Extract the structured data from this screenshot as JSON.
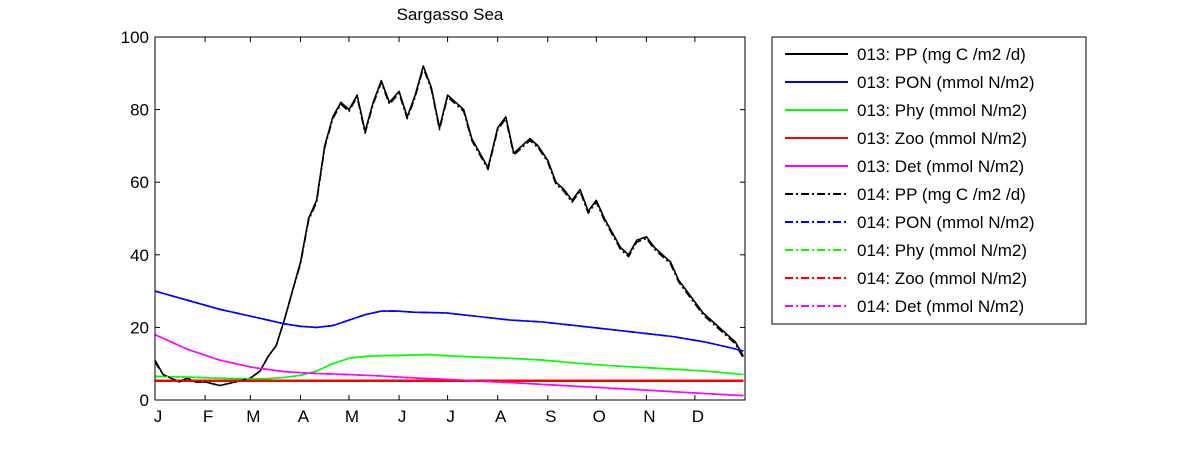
{
  "chart_data": {
    "type": "line",
    "title": "Sargasso Sea",
    "xlabel": "",
    "ylabel": "",
    "xlim": [
      0,
      365
    ],
    "ylim": [
      0,
      100
    ],
    "yticks": [
      0,
      20,
      40,
      60,
      80,
      100
    ],
    "xtick_labels": [
      "J",
      "F",
      "M",
      "A",
      "M",
      "J",
      "J",
      "A",
      "S",
      "O",
      "N",
      "D"
    ],
    "xtick_days": [
      0,
      31,
      59,
      90,
      120,
      151,
      181,
      212,
      243,
      273,
      304,
      334
    ],
    "grid": false,
    "legend_position": "outside-right",
    "series": [
      {
        "name": "013: PP (mg C /m2 /d)",
        "color": "#000000",
        "dash": "solid",
        "x": [
          0,
          5,
          10,
          15,
          20,
          25,
          31,
          40,
          50,
          59,
          65,
          70,
          75,
          80,
          85,
          90,
          95,
          100,
          105,
          110,
          115,
          120,
          125,
          130,
          135,
          140,
          145,
          151,
          156,
          161,
          166,
          171,
          176,
          181,
          186,
          191,
          196,
          201,
          206,
          212,
          217,
          222,
          227,
          232,
          237,
          243,
          248,
          253,
          258,
          263,
          268,
          273,
          278,
          283,
          288,
          293,
          298,
          304,
          309,
          314,
          319,
          324,
          329,
          334,
          339,
          344,
          349,
          354,
          359,
          364
        ],
        "values": [
          11,
          7,
          6,
          5,
          6,
          5,
          5,
          4,
          5,
          6,
          8,
          12,
          15,
          22,
          30,
          38,
          50,
          55,
          70,
          78,
          82,
          80,
          84,
          74,
          82,
          88,
          82,
          85,
          78,
          84,
          92,
          86,
          75,
          84,
          82,
          80,
          72,
          68,
          64,
          75,
          78,
          68,
          70,
          72,
          70,
          66,
          60,
          58,
          55,
          58,
          52,
          55,
          50,
          46,
          42,
          40,
          44,
          45,
          42,
          40,
          38,
          33,
          30,
          27,
          24,
          22,
          20,
          18,
          16,
          12
        ]
      },
      {
        "name": "013: PON (mmol N/m2)",
        "color": "#0000ff",
        "dash": "solid",
        "x": [
          0,
          20,
          40,
          60,
          80,
          90,
          100,
          110,
          120,
          130,
          140,
          150,
          160,
          180,
          200,
          220,
          240,
          260,
          280,
          300,
          320,
          340,
          355,
          364
        ],
        "values": [
          30,
          27.5,
          25,
          23,
          21,
          20.3,
          20,
          20.5,
          22,
          23.5,
          24.5,
          24.5,
          24.2,
          24,
          23,
          22,
          21.5,
          20.5,
          19.5,
          18.5,
          17.5,
          16,
          14.5,
          13.5
        ]
      },
      {
        "name": "013: Phy (mmol N/m2)",
        "color": "#00ff00",
        "dash": "solid",
        "x": [
          0,
          20,
          40,
          60,
          70,
          80,
          90,
          100,
          110,
          120,
          130,
          140,
          150,
          170,
          180,
          200,
          220,
          240,
          260,
          280,
          300,
          320,
          340,
          364
        ],
        "values": [
          6.5,
          6.3,
          6,
          5.8,
          5.9,
          6.2,
          6.8,
          8,
          10,
          11.5,
          12,
          12.2,
          12.3,
          12.5,
          12.2,
          11.8,
          11.5,
          11,
          10.2,
          9.5,
          9,
          8.5,
          8,
          7
        ]
      },
      {
        "name": "013: Zoo (mmol N/m2)",
        "color": "#ff0000",
        "dash": "solid",
        "x": [
          0,
          60,
          120,
          180,
          240,
          300,
          364
        ],
        "values": [
          5.3,
          5.3,
          5.3,
          5.3,
          5.3,
          5.3,
          5.3
        ]
      },
      {
        "name": "013: Det (mmol N/m2)",
        "color": "#ff00ff",
        "dash": "solid",
        "x": [
          0,
          20,
          40,
          60,
          80,
          100,
          120,
          140,
          160,
          180,
          200,
          220,
          240,
          260,
          280,
          300,
          320,
          340,
          364
        ],
        "values": [
          18,
          14,
          11,
          9,
          7.8,
          7.3,
          7,
          6.6,
          6.1,
          5.7,
          5.2,
          4.8,
          4.3,
          3.8,
          3.3,
          2.8,
          2.3,
          1.8,
          1.2
        ]
      },
      {
        "name": "014: PP (mg C /m2 /d)",
        "color": "#000000",
        "dash": "dashdot",
        "x": [
          0,
          5,
          10,
          15,
          20,
          25,
          31,
          40,
          50,
          59,
          65,
          70,
          75,
          80,
          85,
          90,
          95,
          100,
          105,
          110,
          115,
          120,
          125,
          130,
          135,
          140,
          145,
          151,
          156,
          161,
          166,
          171,
          176,
          181,
          186,
          191,
          196,
          201,
          206,
          212,
          217,
          222,
          227,
          232,
          237,
          243,
          248,
          253,
          258,
          263,
          268,
          273,
          278,
          283,
          288,
          293,
          298,
          304,
          309,
          314,
          319,
          324,
          329,
          334,
          339,
          344,
          349,
          354,
          359,
          364
        ],
        "values": [
          10.5,
          7,
          6,
          5,
          6,
          5,
          5,
          4,
          5,
          6,
          8,
          12,
          15,
          22,
          30,
          37.5,
          49.5,
          54.5,
          69.5,
          77.5,
          81.5,
          79.5,
          83.5,
          73.5,
          81.5,
          87.5,
          81.5,
          84.5,
          77.5,
          83.5,
          91.5,
          85.5,
          74.5,
          83.5,
          81.5,
          79.5,
          71.5,
          67.5,
          63.5,
          74.5,
          77.5,
          67.5,
          69.5,
          71.5,
          69.5,
          65.5,
          59.5,
          57.5,
          54.5,
          57.5,
          51.5,
          54.5,
          49.5,
          45.5,
          41.5,
          39.5,
          43.5,
          44.5,
          41.5,
          39.5,
          37.5,
          32.5,
          29.5,
          26.5,
          23.5,
          21.5,
          19.5,
          17.5,
          15.5,
          11.5
        ]
      },
      {
        "name": "014: PON (mmol N/m2)",
        "color": "#0000ff",
        "dash": "dashdot",
        "x": [
          0,
          20,
          40,
          60,
          80,
          90,
          100,
          110,
          120,
          130,
          140,
          150,
          160,
          180,
          200,
          220,
          240,
          260,
          280,
          300,
          320,
          340,
          355,
          364
        ],
        "values": [
          30,
          27.5,
          25,
          23,
          21,
          20.3,
          20,
          20.5,
          22,
          23.5,
          24.5,
          24.5,
          24.2,
          24,
          23,
          22,
          21.5,
          20.5,
          19.5,
          18.5,
          17.5,
          16,
          14.5,
          13.5
        ]
      },
      {
        "name": "014: Phy (mmol N/m2)",
        "color": "#00ff00",
        "dash": "dashdot",
        "x": [
          0,
          20,
          40,
          60,
          70,
          80,
          90,
          100,
          110,
          120,
          130,
          140,
          150,
          170,
          180,
          200,
          220,
          240,
          260,
          280,
          300,
          320,
          340,
          364
        ],
        "values": [
          6.5,
          6.3,
          6,
          5.8,
          5.9,
          6.2,
          6.8,
          8,
          10,
          11.5,
          12,
          12.2,
          12.3,
          12.5,
          12.2,
          11.8,
          11.5,
          11,
          10.2,
          9.5,
          9,
          8.5,
          8,
          7
        ]
      },
      {
        "name": "014: Zoo (mmol N/m2)",
        "color": "#ff0000",
        "dash": "dashdot",
        "x": [
          0,
          60,
          120,
          180,
          240,
          300,
          364
        ],
        "values": [
          5.3,
          5.3,
          5.3,
          5.3,
          5.3,
          5.3,
          5.3
        ]
      },
      {
        "name": "014: Det (mmol N/m2)",
        "color": "#ff00ff",
        "dash": "dashdot",
        "x": [
          0,
          20,
          40,
          60,
          80,
          100,
          120,
          140,
          160,
          180,
          200,
          220,
          240,
          260,
          280,
          300,
          320,
          340,
          364
        ],
        "values": [
          18,
          14,
          11,
          9,
          7.8,
          7.3,
          7,
          6.6,
          6.1,
          5.7,
          5.2,
          4.8,
          4.3,
          3.8,
          3.3,
          2.8,
          2.3,
          1.8,
          1.2
        ]
      }
    ]
  }
}
